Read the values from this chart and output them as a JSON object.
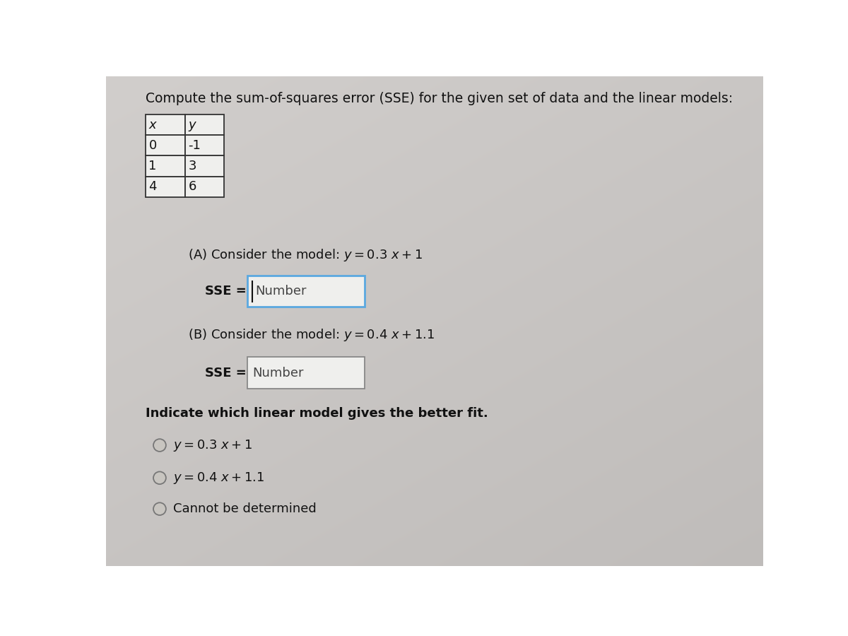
{
  "title": "Compute the sum-of-squares error (SSE) for the given set of data and the linear models:",
  "table_headers": [
    "x",
    "y"
  ],
  "table_data": [
    [
      "0",
      "-1"
    ],
    [
      "1",
      "3"
    ],
    [
      "4",
      "6"
    ]
  ],
  "part_a_full": "(A) Consider the model: $y = 0.3\\ x + 1$",
  "part_b_full": "(B) Consider the model: $y = 0.4\\ x + 1.1$",
  "sse_label": "SSE = ",
  "sse_placeholder": "Number",
  "indicate_label": "Indicate which linear model gives the better fit.",
  "radio_options": [
    "$y = 0.3\\ x + 1$",
    "$y = 0.4\\ x + 1.1$",
    "Cannot be determined"
  ],
  "bg_color_light": "#d8d5d0",
  "bg_color_dark": "#b0aaa5",
  "white_bg": "#efefed",
  "box_a_color": "#5aa8e0",
  "text_color": "#111111",
  "title_fontsize": 13.5,
  "body_fontsize": 13,
  "table_fontsize": 13
}
